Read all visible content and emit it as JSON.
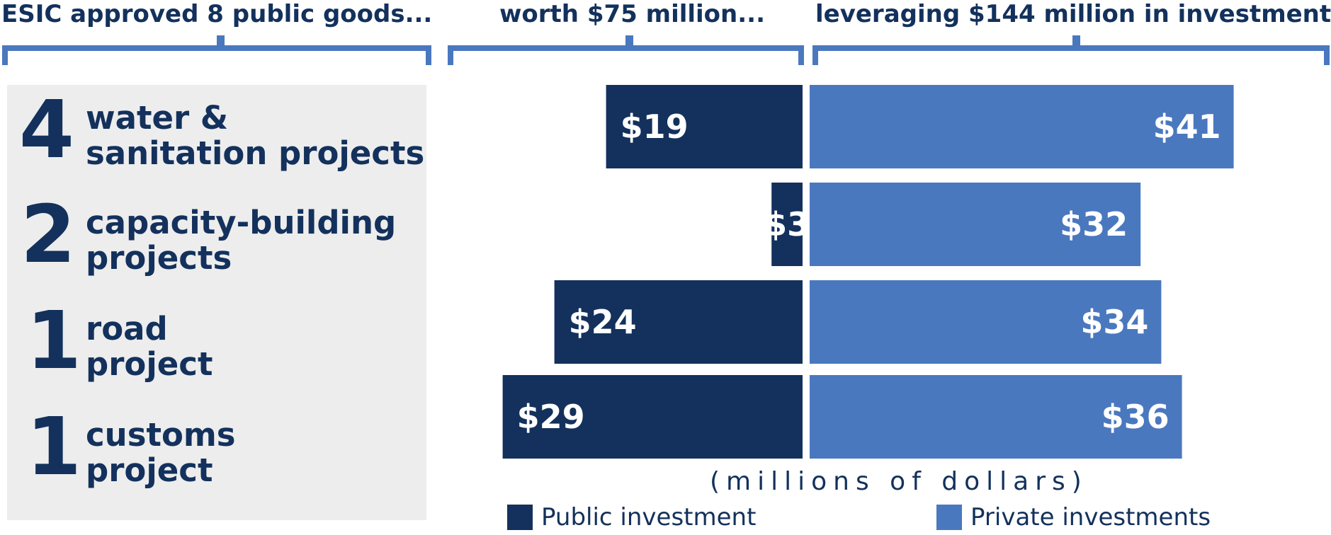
{
  "headers": {
    "goods": "ESIC approved 8 public goods...",
    "worth": "worth $75 million...",
    "leverage": "leveraging $144 million in investment."
  },
  "projects": [
    {
      "count": "4",
      "line1": "water &",
      "line2": "sanitation projects"
    },
    {
      "count": "2",
      "line1": "capacity-building",
      "line2": "projects"
    },
    {
      "count": "1",
      "line1": "road",
      "line2": "project"
    },
    {
      "count": "1",
      "line1": "customs",
      "line2": "project"
    }
  ],
  "units_label": "(millions of dollars)",
  "colors": {
    "public": "#13315c",
    "private": "#4a78bf",
    "panel": "#ededed"
  },
  "chart_data": {
    "type": "bar",
    "orientation": "horizontal-diverging",
    "categories": [
      "water & sanitation projects",
      "capacity-building projects",
      "road project",
      "customs project"
    ],
    "series": [
      {
        "name": "Public investment",
        "values": [
          19,
          3,
          24,
          29
        ],
        "labels": [
          "$19",
          "$3",
          "$24",
          "$29"
        ]
      },
      {
        "name": "Private investments",
        "values": [
          41,
          32,
          34,
          36
        ],
        "labels": [
          "$41",
          "$32",
          "$34",
          "$36"
        ]
      }
    ],
    "xlabel": "(millions of dollars)",
    "legend": [
      "Public investment",
      "Private investments"
    ],
    "legend_position": "bottom",
    "grid": false
  }
}
